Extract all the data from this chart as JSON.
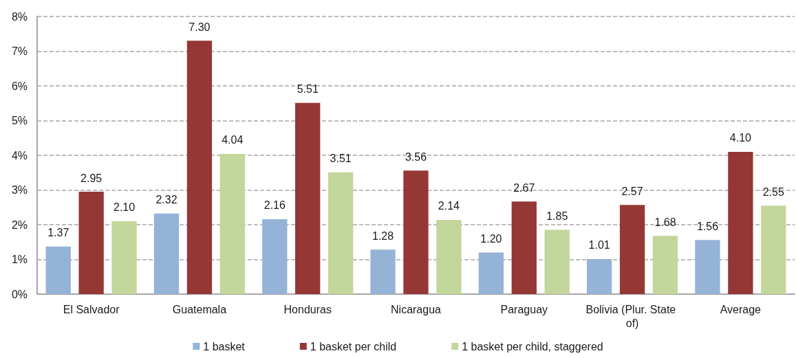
{
  "chart_data": {
    "type": "bar",
    "categories": [
      "El Salvador",
      "Guatemala",
      "Honduras",
      "Nicaragua",
      "Paraguay",
      "Bolivia (Plur. State of)",
      "Average"
    ],
    "series": [
      {
        "name": "1 basket",
        "color": "#95b3d7",
        "values": [
          1.37,
          2.32,
          2.16,
          1.28,
          1.2,
          1.01,
          1.56
        ],
        "value_labels": [
          "1.37",
          "2.32",
          "2.16",
          "1.28",
          "1.20",
          "1.01",
          "1.56"
        ]
      },
      {
        "name": "1 basket per child",
        "color": "#953735",
        "values": [
          2.95,
          7.3,
          5.51,
          3.56,
          2.67,
          2.57,
          4.1
        ],
        "value_labels": [
          "2.95",
          "7.30",
          "5.51",
          "3.56",
          "2.67",
          "2.57",
          "4.10"
        ]
      },
      {
        "name": "1 basket per child, staggered",
        "color": "#c3d69b",
        "values": [
          2.1,
          4.04,
          3.51,
          2.14,
          1.85,
          1.68,
          2.55
        ],
        "value_labels": [
          "2.10",
          "4.04",
          "3.51",
          "2.14",
          "1.85",
          "1.68",
          "2.55"
        ]
      }
    ],
    "ylim": [
      0,
      8
    ],
    "yticks": [
      {
        "value": 0,
        "label": "0%"
      },
      {
        "value": 1,
        "label": "1%"
      },
      {
        "value": 2,
        "label": "2%"
      },
      {
        "value": 3,
        "label": "3%"
      },
      {
        "value": 4,
        "label": "4%"
      },
      {
        "value": 5,
        "label": "5%"
      },
      {
        "value": 6,
        "label": "6%"
      },
      {
        "value": 7,
        "label": "7%"
      },
      {
        "value": 8,
        "label": "8%"
      }
    ],
    "grid": "y",
    "line_style": "dashed",
    "legend": "bottom"
  }
}
